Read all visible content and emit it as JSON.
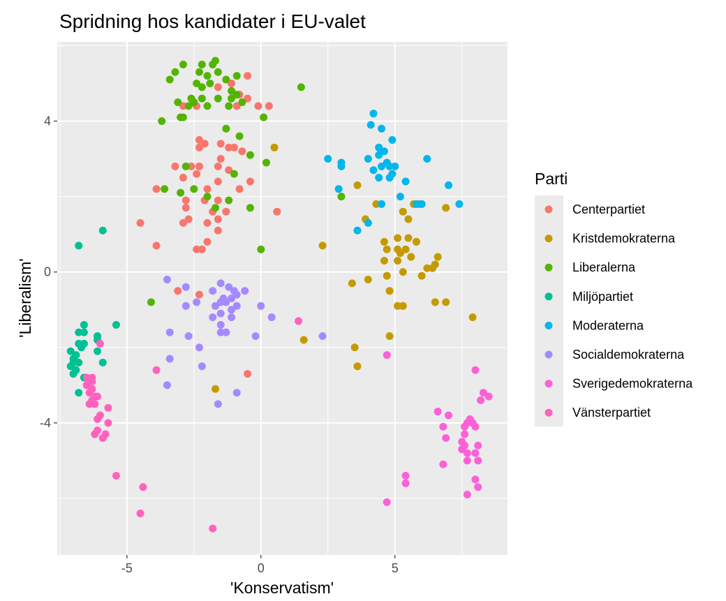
{
  "chart_data": {
    "type": "scatter",
    "title": "Spridning hos kandidater i EU-valet",
    "xlabel": "'Konservatism'",
    "ylabel": "'Liberalism'",
    "xlim": [
      -7.6,
      9.2
    ],
    "ylim": [
      -7.5,
      6.1
    ],
    "xticks": [
      -5,
      0,
      5
    ],
    "yticks": [
      -4,
      0,
      4
    ],
    "x_minor": [
      -7.5,
      -2.5,
      2.5,
      7.5
    ],
    "y_minor": [
      -6,
      -2,
      2,
      6
    ],
    "grid": true,
    "legend": {
      "title": "Parti",
      "position": "right"
    },
    "series": [
      {
        "name": "Centerpartiet",
        "color": "#F8766D",
        "points": [
          [
            -1.6,
            4.9
          ],
          [
            -1.1,
            5.0
          ],
          [
            -0.8,
            4.7
          ],
          [
            -0.5,
            5.2
          ],
          [
            -0.5,
            4.6
          ],
          [
            -0.9,
            4.4
          ],
          [
            -0.1,
            4.4
          ],
          [
            0.3,
            4.4
          ],
          [
            -2.9,
            4.4
          ],
          [
            -2.4,
            4.4
          ],
          [
            -2.3,
            3.5
          ],
          [
            -2.1,
            3.4
          ],
          [
            -1.5,
            3.4
          ],
          [
            -1.2,
            3.3
          ],
          [
            -1.0,
            3.3
          ],
          [
            -0.7,
            3.2
          ],
          [
            -1.5,
            3.0
          ],
          [
            -2.3,
            3.3
          ],
          [
            -3.2,
            2.8
          ],
          [
            -2.6,
            2.8
          ],
          [
            -2.3,
            2.8
          ],
          [
            -1.6,
            2.8
          ],
          [
            -1.2,
            2.7
          ],
          [
            -2.4,
            2.6
          ],
          [
            -2.9,
            2.5
          ],
          [
            -1.6,
            2.4
          ],
          [
            -0.4,
            2.4
          ],
          [
            -3.9,
            2.2
          ],
          [
            -2.0,
            2.2
          ],
          [
            -0.8,
            2.2
          ],
          [
            -2.8,
            1.9
          ],
          [
            -2.1,
            1.9
          ],
          [
            -1.6,
            1.9
          ],
          [
            -2.8,
            1.7
          ],
          [
            -1.8,
            1.6
          ],
          [
            -1.3,
            1.6
          ],
          [
            -2.7,
            1.4
          ],
          [
            -1.6,
            1.4
          ],
          [
            0.6,
            1.6
          ],
          [
            -4.5,
            1.3
          ],
          [
            -2.9,
            1.3
          ],
          [
            -2.0,
            1.3
          ],
          [
            -1.6,
            1.1
          ],
          [
            -2.0,
            0.8
          ],
          [
            -3.9,
            0.7
          ],
          [
            -2.4,
            0.6
          ],
          [
            -2.2,
            0.6
          ],
          [
            -3.1,
            -0.5
          ],
          [
            -2.3,
            -0.6
          ],
          [
            -0.5,
            -2.7
          ]
        ]
      },
      {
        "name": "Kristdemokraterna",
        "color": "#C49A00",
        "points": [
          [
            0.5,
            3.3
          ],
          [
            3.6,
            2.3
          ],
          [
            4.3,
            1.8
          ],
          [
            5.3,
            1.6
          ],
          [
            5.5,
            1.4
          ],
          [
            5.7,
            1.8
          ],
          [
            5.9,
            1.8
          ],
          [
            6.9,
            1.7
          ],
          [
            3.9,
            1.4
          ],
          [
            4.6,
            0.8
          ],
          [
            5.1,
            0.9
          ],
          [
            5.5,
            0.9
          ],
          [
            5.8,
            0.8
          ],
          [
            5.4,
            0.6
          ],
          [
            5.1,
            0.6
          ],
          [
            4.7,
            0.6
          ],
          [
            5.2,
            0.5
          ],
          [
            5.6,
            0.4
          ],
          [
            6.6,
            0.4
          ],
          [
            4.6,
            0.3
          ],
          [
            5.1,
            0.3
          ],
          [
            6.5,
            0.2
          ],
          [
            5.3,
            0.0
          ],
          [
            6.2,
            0.1
          ],
          [
            6.4,
            0.1
          ],
          [
            4.7,
            -0.1
          ],
          [
            6.0,
            -0.1
          ],
          [
            3.4,
            -0.3
          ],
          [
            4.0,
            -0.2
          ],
          [
            2.3,
            0.7
          ],
          [
            4.8,
            -0.5
          ],
          [
            5.1,
            -0.9
          ],
          [
            5.3,
            -0.9
          ],
          [
            6.5,
            -0.8
          ],
          [
            6.9,
            -0.8
          ],
          [
            7.9,
            -1.2
          ],
          [
            1.6,
            -1.8
          ],
          [
            4.8,
            -1.7
          ],
          [
            3.5,
            -2.0
          ],
          [
            3.6,
            -2.5
          ],
          [
            -1.7,
            -3.1
          ]
        ]
      },
      {
        "name": "Liberalerna",
        "color": "#53B400",
        "points": [
          [
            -3.4,
            5.1
          ],
          [
            -3.2,
            5.3
          ],
          [
            -2.9,
            5.5
          ],
          [
            -2.3,
            5.3
          ],
          [
            -2.2,
            5.5
          ],
          [
            -1.8,
            5.5
          ],
          [
            -1.7,
            5.6
          ],
          [
            -1.6,
            5.3
          ],
          [
            -2.0,
            5.2
          ],
          [
            -1.9,
            5.0
          ],
          [
            -2.4,
            5.0
          ],
          [
            -1.3,
            5.1
          ],
          [
            -0.9,
            5.2
          ],
          [
            -2.2,
            4.9
          ],
          [
            -1.1,
            4.8
          ],
          [
            -0.9,
            4.7
          ],
          [
            1.5,
            4.9
          ],
          [
            -2.6,
            4.6
          ],
          [
            -2.2,
            4.6
          ],
          [
            -1.6,
            4.6
          ],
          [
            -1.1,
            4.6
          ],
          [
            -0.7,
            4.5
          ],
          [
            -3.1,
            4.5
          ],
          [
            -2.7,
            4.4
          ],
          [
            -2.5,
            4.5
          ],
          [
            -2.0,
            4.4
          ],
          [
            -1.2,
            4.4
          ],
          [
            0.1,
            4.1
          ],
          [
            -3.0,
            4.1
          ],
          [
            -2.9,
            4.1
          ],
          [
            -3.7,
            4.0
          ],
          [
            -1.3,
            3.8
          ],
          [
            -0.8,
            3.6
          ],
          [
            -0.4,
            3.1
          ],
          [
            0.2,
            2.9
          ],
          [
            -1.0,
            2.6
          ],
          [
            -2.8,
            2.8
          ],
          [
            -3.6,
            2.2
          ],
          [
            -2.5,
            2.2
          ],
          [
            -3.0,
            2.1
          ],
          [
            -2.0,
            2.0
          ],
          [
            -1.2,
            1.9
          ],
          [
            -1.7,
            1.7
          ],
          [
            -0.4,
            1.7
          ],
          [
            0.0,
            0.6
          ],
          [
            3.0,
            2.0
          ],
          [
            -4.1,
            -0.8
          ]
        ]
      },
      {
        "name": "Miljöpartiet",
        "color": "#00C094",
        "points": [
          [
            -5.9,
            1.1
          ],
          [
            -6.8,
            0.7
          ],
          [
            -5.4,
            -1.4
          ],
          [
            -6.6,
            -1.4
          ],
          [
            -6.6,
            -1.6
          ],
          [
            -6.8,
            -1.6
          ],
          [
            -6.1,
            -1.7
          ],
          [
            -6.6,
            -1.9
          ],
          [
            -6.1,
            -1.8
          ],
          [
            -6.8,
            -1.9
          ],
          [
            -6.7,
            -2.0
          ],
          [
            -7.1,
            -2.1
          ],
          [
            -6.9,
            -2.2
          ],
          [
            -6.1,
            -2.1
          ],
          [
            -7.0,
            -2.3
          ],
          [
            -6.8,
            -2.4
          ],
          [
            -7.0,
            -2.4
          ],
          [
            -5.9,
            -2.4
          ],
          [
            -7.1,
            -2.5
          ],
          [
            -6.9,
            -2.6
          ],
          [
            -7.0,
            -2.7
          ],
          [
            -6.6,
            -2.8
          ],
          [
            -6.8,
            -3.2
          ]
        ]
      },
      {
        "name": "Moderaterna",
        "color": "#00B6EB",
        "points": [
          [
            4.2,
            4.2
          ],
          [
            4.1,
            3.9
          ],
          [
            4.5,
            3.8
          ],
          [
            4.9,
            3.5
          ],
          [
            4.4,
            3.3
          ],
          [
            4.6,
            3.2
          ],
          [
            2.5,
            3.0
          ],
          [
            3.0,
            2.9
          ],
          [
            4.0,
            3.0
          ],
          [
            4.4,
            3.1
          ],
          [
            6.2,
            3.0
          ],
          [
            3.0,
            2.8
          ],
          [
            4.5,
            2.8
          ],
          [
            4.7,
            2.9
          ],
          [
            4.8,
            2.8
          ],
          [
            5.0,
            2.8
          ],
          [
            4.2,
            2.7
          ],
          [
            4.9,
            2.6
          ],
          [
            4.8,
            2.5
          ],
          [
            4.4,
            2.5
          ],
          [
            5.4,
            2.4
          ],
          [
            7.0,
            2.3
          ],
          [
            2.9,
            2.2
          ],
          [
            5.2,
            2.0
          ],
          [
            5.8,
            1.8
          ],
          [
            6.0,
            1.8
          ],
          [
            7.4,
            1.8
          ],
          [
            4.5,
            1.8
          ],
          [
            4.0,
            1.3
          ],
          [
            3.6,
            1.1
          ]
        ]
      },
      {
        "name": "Socialdemokraterna",
        "color": "#A58AFF",
        "points": [
          [
            -3.5,
            -0.2
          ],
          [
            -2.8,
            -0.4
          ],
          [
            -1.5,
            -0.3
          ],
          [
            -1.2,
            -0.4
          ],
          [
            -1.0,
            -0.5
          ],
          [
            -0.6,
            -0.5
          ],
          [
            -0.9,
            -0.6
          ],
          [
            -1.8,
            -0.5
          ],
          [
            -1.4,
            -0.7
          ],
          [
            -1.1,
            -0.7
          ],
          [
            -1.5,
            -0.8
          ],
          [
            -1.3,
            -0.8
          ],
          [
            -2.4,
            -0.8
          ],
          [
            -0.9,
            -0.9
          ],
          [
            -2.8,
            -0.9
          ],
          [
            -1.7,
            -0.9
          ],
          [
            0.0,
            -0.9
          ],
          [
            -1.1,
            -1.0
          ],
          [
            -1.5,
            -1.1
          ],
          [
            -1.8,
            -1.2
          ],
          [
            -1.1,
            -1.2
          ],
          [
            0.4,
            -1.2
          ],
          [
            -1.5,
            -1.4
          ],
          [
            -3.4,
            -1.6
          ],
          [
            -1.5,
            -1.6
          ],
          [
            -1.3,
            -1.6
          ],
          [
            -2.7,
            -1.7
          ],
          [
            -0.2,
            -1.7
          ],
          [
            2.3,
            -1.7
          ],
          [
            -2.3,
            -2.0
          ],
          [
            -3.4,
            -2.3
          ],
          [
            -2.2,
            -2.5
          ],
          [
            -3.5,
            -3.0
          ],
          [
            -0.9,
            -3.2
          ],
          [
            -1.6,
            -3.5
          ]
        ]
      },
      {
        "name": "Sverigedemokraterna",
        "color": "#FB61D7",
        "points": [
          [
            8.0,
            -2.6
          ],
          [
            4.7,
            -2.2
          ],
          [
            8.3,
            -3.2
          ],
          [
            8.5,
            -3.3
          ],
          [
            8.2,
            -3.4
          ],
          [
            6.6,
            -3.7
          ],
          [
            7.0,
            -3.8
          ],
          [
            7.8,
            -3.9
          ],
          [
            7.7,
            -4.0
          ],
          [
            7.9,
            -4.0
          ],
          [
            8.0,
            -4.1
          ],
          [
            7.6,
            -4.1
          ],
          [
            6.8,
            -4.1
          ],
          [
            7.6,
            -4.3
          ],
          [
            6.9,
            -4.4
          ],
          [
            7.5,
            -4.5
          ],
          [
            7.6,
            -4.6
          ],
          [
            8.1,
            -4.6
          ],
          [
            7.5,
            -4.7
          ],
          [
            7.7,
            -4.8
          ],
          [
            8.0,
            -4.8
          ],
          [
            8.1,
            -5.0
          ],
          [
            7.7,
            -5.0
          ],
          [
            6.8,
            -5.1
          ],
          [
            5.4,
            -5.4
          ],
          [
            8.0,
            -5.5
          ],
          [
            5.4,
            -5.6
          ],
          [
            8.1,
            -5.7
          ],
          [
            7.7,
            -5.9
          ],
          [
            4.7,
            -6.1
          ]
        ]
      },
      {
        "name": "Vänsterpartiet",
        "color": "#FF62BC",
        "points": [
          [
            1.4,
            -1.3
          ],
          [
            -6.0,
            -1.9
          ],
          [
            -6.3,
            -2.8
          ],
          [
            -6.5,
            -2.8
          ],
          [
            -6.3,
            -2.9
          ],
          [
            -6.5,
            -3.0
          ],
          [
            -6.3,
            -3.1
          ],
          [
            -6.4,
            -3.2
          ],
          [
            -6.2,
            -3.3
          ],
          [
            -6.1,
            -3.3
          ],
          [
            -6.3,
            -3.4
          ],
          [
            -6.4,
            -3.5
          ],
          [
            -6.2,
            -3.5
          ],
          [
            -5.7,
            -3.6
          ],
          [
            -6.0,
            -3.8
          ],
          [
            -6.1,
            -3.9
          ],
          [
            -5.7,
            -4.0
          ],
          [
            -6.1,
            -4.2
          ],
          [
            -5.8,
            -4.3
          ],
          [
            -6.2,
            -4.3
          ],
          [
            -5.9,
            -4.4
          ],
          [
            -3.9,
            -2.6
          ],
          [
            -5.4,
            -5.4
          ],
          [
            -4.4,
            -5.7
          ],
          [
            -4.5,
            -6.4
          ],
          [
            -1.8,
            -6.8
          ]
        ]
      }
    ]
  }
}
